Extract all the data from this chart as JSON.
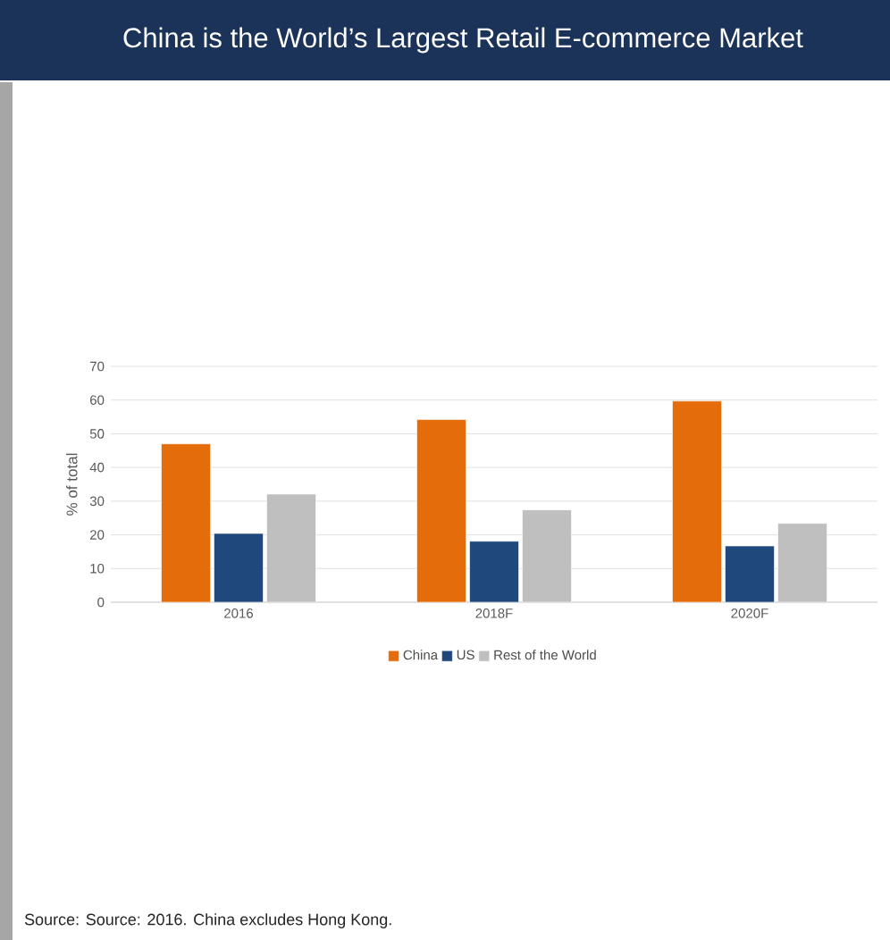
{
  "chart_data": {
    "type": "bar",
    "title": "China is the World’s Largest Retail E-commerce Market",
    "ylabel": "% of total",
    "categories": [
      "2016",
      "2018F",
      "2020F"
    ],
    "series": [
      {
        "name": "China",
        "color": "#e46c0a",
        "values": [
          47,
          54.2,
          59.7
        ]
      },
      {
        "name": "US",
        "color": "#1f497d",
        "values": [
          20.4,
          18.1,
          16.7
        ]
      },
      {
        "name": "Rest of the World",
        "color": "#bfbfbf",
        "values": [
          32.1,
          27.4,
          23.4
        ]
      }
    ],
    "ylim": [
      0,
      70
    ],
    "yticks": [
      0,
      10,
      20,
      30,
      40,
      50,
      60,
      70
    ],
    "grid": "y",
    "legend": "bottom",
    "annotations": [
      "Source: Source: 2016. China excludes Hong Kong."
    ]
  }
}
